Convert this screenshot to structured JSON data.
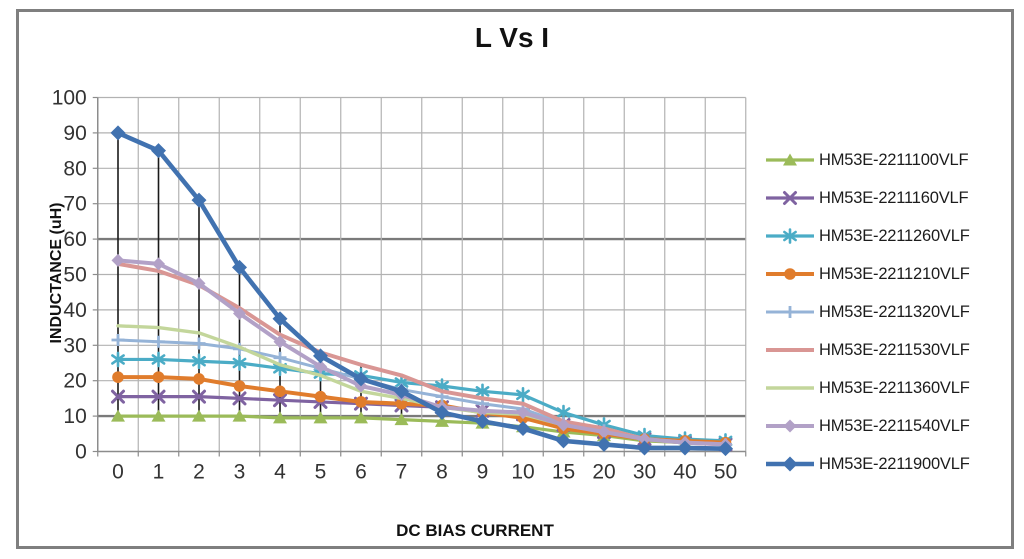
{
  "window": {
    "background": "#ffffff",
    "frame_color": "#7f7f7f"
  },
  "chart_data": {
    "type": "line",
    "title": "L Vs I",
    "xlabel": "DC BIAS CURRENT",
    "ylabel": "INDUCTANCE (uH)",
    "x_categories": [
      "0",
      "1",
      "2",
      "3",
      "4",
      "5",
      "6",
      "7",
      "8",
      "9",
      "10",
      "15",
      "20",
      "30",
      "40",
      "50"
    ],
    "y_ticks": [
      0,
      10,
      20,
      30,
      40,
      50,
      60,
      70,
      80,
      90,
      100
    ],
    "ylim": [
      0,
      100
    ],
    "legend_position": "right",
    "grid": {
      "horizontal": true,
      "vertical": true,
      "color": "#b2b2b2",
      "emphasized_color": "#7a7a7a",
      "emphasized_levels": [
        10,
        60
      ],
      "axis_color": "#8c8c8c",
      "high_low_line_color": "#1a1a1a",
      "high_low_lines": true
    },
    "series": [
      {
        "name": "HM53E-2211100VLF",
        "color": "#9bbb59",
        "marker": "triangle",
        "line_width": 3.2,
        "values": [
          10,
          10,
          10,
          10,
          9.5,
          9.5,
          9.5,
          9,
          8.5,
          8,
          7,
          5.5,
          4.5,
          3,
          2.5,
          2
        ]
      },
      {
        "name": "HM53E-2211160VLF",
        "color": "#7f63a1",
        "marker": "x",
        "line_width": 3.2,
        "values": [
          15.5,
          15.5,
          15.5,
          15,
          14.5,
          14,
          13.5,
          13,
          12.5,
          11.5,
          10.5,
          7.5,
          5.5,
          3.5,
          2.5,
          2
        ]
      },
      {
        "name": "HM53E-2211260VLF",
        "color": "#4bacc6",
        "marker": "asterisk",
        "line_width": 3.2,
        "values": [
          26,
          26,
          25.5,
          25,
          23.5,
          22,
          21.5,
          19.5,
          18.5,
          17,
          16,
          11,
          7.5,
          4.5,
          3.5,
          3
        ]
      },
      {
        "name": "HM53E-2211210VLF",
        "color": "#e07c2c",
        "marker": "circle",
        "line_width": 4,
        "values": [
          21,
          21,
          20.5,
          18.5,
          17,
          15.5,
          14,
          13.5,
          13,
          11,
          9.5,
          6.5,
          5,
          3.5,
          3,
          2.5
        ]
      },
      {
        "name": "HM53E-2211320VLF",
        "color": "#95b3d7",
        "marker": "plus",
        "line_width": 3,
        "values": [
          31.5,
          31,
          30.5,
          29,
          26.5,
          23.5,
          20.5,
          17.5,
          15.5,
          13.5,
          12,
          8,
          6,
          3.5,
          2.5,
          2
        ]
      },
      {
        "name": "HM53E-2211530VLF",
        "color": "#d99694",
        "marker": "none",
        "line_width": 4,
        "values": [
          53,
          51,
          47,
          40.5,
          33,
          28,
          24.5,
          21.5,
          17,
          15,
          13.5,
          8.5,
          6.5,
          3.5,
          2.5,
          2
        ]
      },
      {
        "name": "HM53E-2211360VLF",
        "color": "#c3d69b",
        "marker": "none",
        "line_width": 3.4,
        "values": [
          35.5,
          35,
          33.5,
          29.5,
          24.5,
          21.5,
          17,
          15,
          12.5,
          11,
          10.5,
          7.5,
          5.5,
          3.5,
          2.5,
          2
        ]
      },
      {
        "name": "HM53E-2211540VLF",
        "color": "#b2a1c7",
        "marker": "diamond",
        "line_width": 4,
        "values": [
          54,
          53,
          47.5,
          39,
          31,
          24,
          18.5,
          16,
          12.5,
          11.5,
          11,
          7.5,
          5.5,
          3.5,
          2.5,
          2
        ]
      },
      {
        "name": "HM53E-2211900VLF",
        "color": "#4172b0",
        "marker": "diamond-large",
        "line_width": 4.6,
        "values": [
          90,
          85,
          71,
          52,
          37.5,
          27,
          20.5,
          17,
          11,
          8.5,
          6.5,
          3,
          2,
          1,
          1,
          0.8
        ]
      }
    ]
  }
}
